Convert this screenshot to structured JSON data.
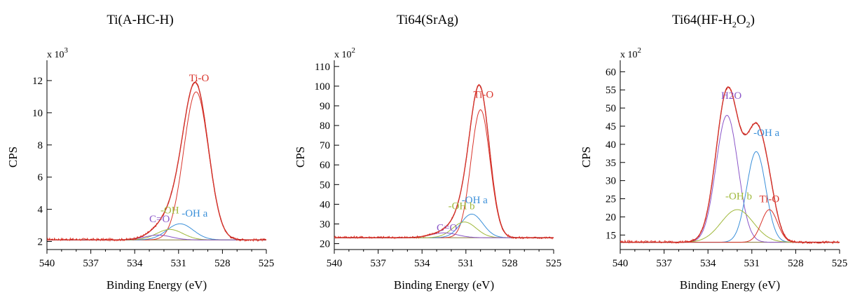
{
  "chart_data": [
    {
      "type": "line",
      "title": "Ti(A-HC-H)",
      "xlabel": "Binding Energy (eV)",
      "ylabel": "CPS",
      "y_multiplier": "x 10",
      "y_multiplier_exp": "3",
      "xlim": [
        540,
        525
      ],
      "ylim": [
        1.5,
        13
      ],
      "x_ticks": [
        540,
        537,
        534,
        531,
        528,
        525
      ],
      "y_ticks": [
        2,
        4,
        6,
        8,
        10,
        12
      ],
      "background": 2.1,
      "noise": 0.08,
      "peaks": [
        {
          "name": "Ti-O",
          "center": 529.8,
          "height": 9.2,
          "width": 0.85,
          "color": "#d9342b",
          "label_x": 529.6,
          "label_y": 11.95
        },
        {
          "name": "-OH a",
          "center": 530.9,
          "height": 1.0,
          "width": 0.9,
          "color": "#3a8fd9",
          "label_x": 529.9,
          "label_y": 3.55
        },
        {
          "name": "-OH",
          "center": 531.6,
          "height": 0.65,
          "width": 0.9,
          "color": "#9fb83a",
          "label_x": 531.6,
          "label_y": 3.75
        },
        {
          "name": "C=O",
          "center": 532.4,
          "height": 0.3,
          "width": 0.9,
          "color": "#8a55c8",
          "label_x": 532.3,
          "label_y": 3.2
        }
      ]
    },
    {
      "type": "line",
      "title": "Ti64(SrAg)",
      "xlabel": "Binding Energy (eV)",
      "ylabel": "CPS",
      "y_multiplier": "x 10",
      "y_multiplier_exp": "2",
      "xlim": [
        540,
        525
      ],
      "ylim": [
        17,
        111
      ],
      "x_ticks": [
        540,
        537,
        534,
        531,
        528,
        525
      ],
      "y_ticks": [
        20,
        30,
        40,
        50,
        60,
        70,
        80,
        90,
        100,
        110
      ],
      "background": 23,
      "noise": 0.6,
      "peaks": [
        {
          "name": "Ti-O",
          "center": 530.0,
          "height": 65,
          "width": 0.65,
          "color": "#d9342b",
          "label_x": 529.8,
          "label_y": 94
        },
        {
          "name": "-OH a",
          "center": 530.6,
          "height": 12,
          "width": 0.75,
          "color": "#3a8fd9",
          "label_x": 530.4,
          "label_y": 40.5
        },
        {
          "name": "-OH b",
          "center": 531.1,
          "height": 8,
          "width": 0.8,
          "color": "#9fb83a",
          "label_x": 531.3,
          "label_y": 37.5
        },
        {
          "name": "C=O",
          "center": 532.5,
          "height": 2.5,
          "width": 0.9,
          "color": "#8a55c8",
          "label_x": 532.3,
          "label_y": 26.5
        }
      ]
    },
    {
      "type": "line",
      "title": "Ti64(HF-H",
      "title_sub1": "2",
      "title_mid": "O",
      "title_sub2": "2",
      "title_end": ")",
      "xlabel": "Binding Energy (eV)",
      "ylabel": "CPS",
      "y_multiplier": "x 10",
      "y_multiplier_exp": "2",
      "xlim": [
        540,
        525
      ],
      "ylim": [
        11,
        62
      ],
      "x_ticks": [
        540,
        537,
        534,
        531,
        528,
        525
      ],
      "y_ticks": [
        15,
        20,
        25,
        30,
        35,
        40,
        45,
        50,
        55,
        60
      ],
      "background": 13,
      "noise": 0.35,
      "peaks": [
        {
          "name": "H2O",
          "center": 532.7,
          "height": 35,
          "width": 0.75,
          "color": "#8a55c8",
          "label_x": 532.4,
          "label_y": 52.5
        },
        {
          "name": "-OH a",
          "center": 530.7,
          "height": 25,
          "width": 0.65,
          "color": "#3a8fd9",
          "label_x": 530.0,
          "label_y": 42.3
        },
        {
          "name": "-OH b",
          "center": 532.0,
          "height": 9,
          "width": 1.1,
          "color": "#9fb83a",
          "label_x": 531.9,
          "label_y": 24.8
        },
        {
          "name": "Ti-O",
          "center": 529.8,
          "height": 9,
          "width": 0.55,
          "color": "#d9342b",
          "label_x": 529.8,
          "label_y": 24.0
        }
      ]
    }
  ]
}
